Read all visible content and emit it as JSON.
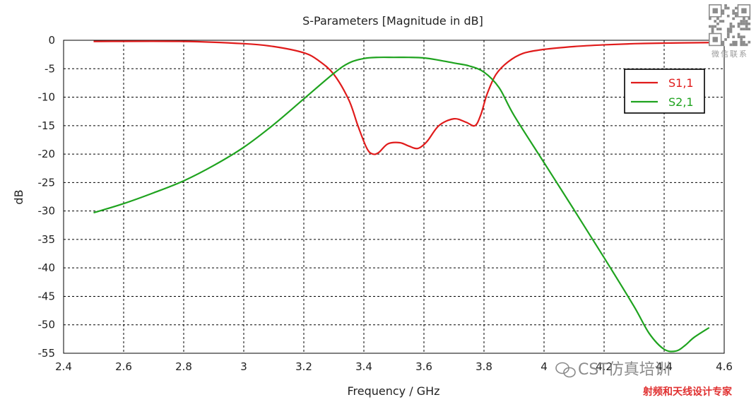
{
  "chart_data": {
    "type": "line",
    "title": "S-Parameters [Magnitude in dB]",
    "xlabel": "Frequency / GHz",
    "ylabel": "dB",
    "xlim": [
      2.4,
      4.6
    ],
    "ylim": [
      -55,
      0
    ],
    "xticks": [
      "2.4",
      "2.6",
      "2.8",
      "3",
      "3.2",
      "3.4",
      "3.6",
      "3.8",
      "4",
      "4.2",
      "4.4",
      "4.6"
    ],
    "yticks": [
      "0",
      "-5",
      "-10",
      "-15",
      "-20",
      "-25",
      "-30",
      "-35",
      "-40",
      "-45",
      "-50",
      "-55"
    ],
    "grid": true,
    "legend": "top-right",
    "series": [
      {
        "name": "S1,1",
        "color": "#e01b1b",
        "x": [
          2.5,
          2.8,
          3.0,
          3.1,
          3.2,
          3.25,
          3.3,
          3.35,
          3.38,
          3.41,
          3.43,
          3.45,
          3.48,
          3.52,
          3.55,
          3.58,
          3.61,
          3.65,
          3.7,
          3.74,
          3.77,
          3.79,
          3.81,
          3.84,
          3.88,
          3.93,
          4.0,
          4.1,
          4.2,
          4.3,
          4.4,
          4.55
        ],
        "values": [
          -0.2,
          -0.2,
          -0.6,
          -1.1,
          -2.2,
          -3.6,
          -6.0,
          -10.5,
          -15.0,
          -19.0,
          -20.0,
          -19.7,
          -18.2,
          -18.0,
          -18.6,
          -19.0,
          -17.8,
          -15.0,
          -13.8,
          -14.4,
          -15.0,
          -13.0,
          -9.5,
          -6.0,
          -3.8,
          -2.3,
          -1.6,
          -1.1,
          -0.8,
          -0.6,
          -0.5,
          -0.4
        ]
      },
      {
        "name": "S2,1",
        "color": "#1fa31f",
        "x": [
          2.5,
          2.6,
          2.7,
          2.8,
          2.9,
          3.0,
          3.1,
          3.2,
          3.3,
          3.35,
          3.4,
          3.45,
          3.5,
          3.55,
          3.6,
          3.65,
          3.7,
          3.75,
          3.8,
          3.85,
          3.9,
          4.0,
          4.1,
          4.2,
          4.3,
          4.35,
          4.4,
          4.44,
          4.47,
          4.5,
          4.55
        ],
        "values": [
          -30.3,
          -28.7,
          -26.8,
          -24.7,
          -22.0,
          -18.8,
          -14.8,
          -10.3,
          -5.8,
          -4.0,
          -3.2,
          -3.0,
          -3.0,
          -3.0,
          -3.1,
          -3.5,
          -4.0,
          -4.5,
          -5.6,
          -8.3,
          -13.2,
          -21.5,
          -29.8,
          -38.2,
          -46.8,
          -51.5,
          -54.3,
          -54.6,
          -53.6,
          -52.2,
          -50.5
        ]
      }
    ]
  },
  "watermark": {
    "wechat_label": "CST仿真培训",
    "brand_text": "射频和天线设计专家",
    "qr_caption": "微信联系"
  }
}
